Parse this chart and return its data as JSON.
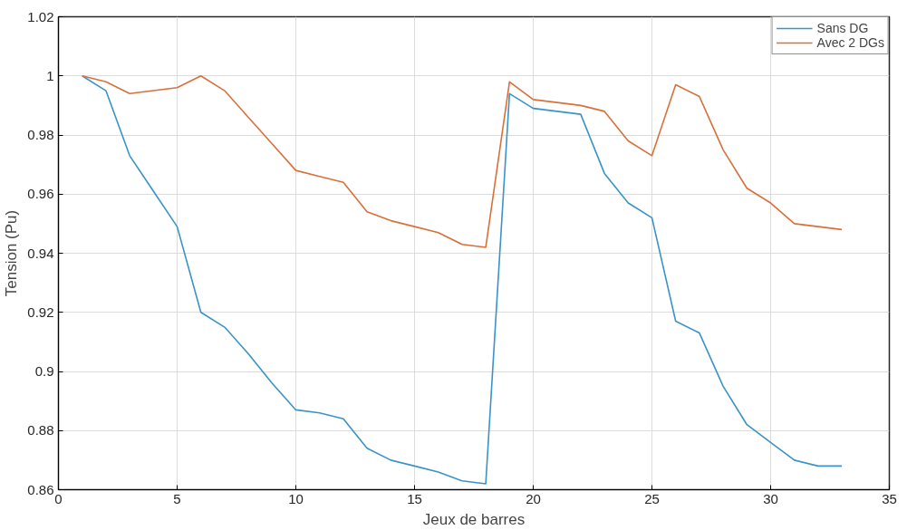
{
  "chart_data": {
    "type": "line",
    "xlabel": "Jeux de barres",
    "ylabel": "Tension (Pu)",
    "x": [
      1,
      2,
      3,
      4,
      5,
      6,
      7,
      8,
      9,
      10,
      11,
      12,
      13,
      14,
      15,
      16,
      17,
      18,
      19,
      20,
      21,
      22,
      23,
      24,
      25,
      26,
      27,
      28,
      29,
      30,
      31,
      32,
      33
    ],
    "series": [
      {
        "name": "Sans DG",
        "color": "#3a93c8",
        "values": [
          1,
          0.995,
          0.973,
          0.961,
          0.949,
          0.92,
          0.915,
          0.906,
          0.896,
          0.887,
          0.886,
          0.884,
          0.874,
          0.87,
          0.868,
          0.866,
          0.863,
          0.862,
          0.994,
          0.989,
          0.988,
          0.987,
          0.967,
          0.957,
          0.952,
          0.917,
          0.913,
          0.895,
          0.882,
          0.876,
          0.87,
          0.868,
          0.868
        ]
      },
      {
        "name": "Avec 2 DGs",
        "color": "#d9703a",
        "values": [
          1,
          0.998,
          0.994,
          0.995,
          0.996,
          1.0,
          0.995,
          0.986,
          0.977,
          0.968,
          0.966,
          0.964,
          0.954,
          0.951,
          0.949,
          0.947,
          0.943,
          0.942,
          0.998,
          0.992,
          0.991,
          0.99,
          0.988,
          0.978,
          0.973,
          0.997,
          0.993,
          0.975,
          0.962,
          0.957,
          0.95,
          0.949,
          0.948
        ]
      }
    ],
    "xlim": [
      0,
      35
    ],
    "xticks": [
      0,
      5,
      10,
      15,
      20,
      25,
      30,
      35
    ],
    "ylim": [
      0.86,
      1.02
    ],
    "yticks": [
      0.86,
      0.88,
      0.9,
      0.92,
      0.94,
      0.96,
      0.98,
      1,
      1.02
    ],
    "grid": true,
    "legend": "top right",
    "marker": "none",
    "line_style": "solid"
  }
}
